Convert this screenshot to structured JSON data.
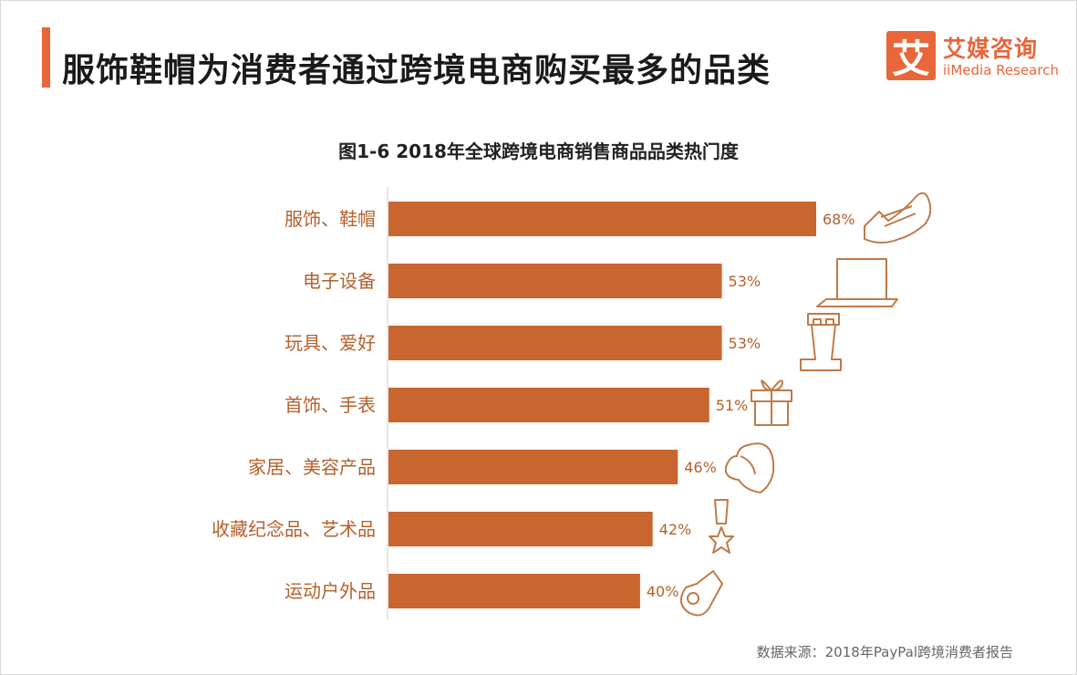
{
  "header": {
    "title": "服饰鞋帽为消费者通过跨境电商购买最多的品类"
  },
  "logo": {
    "mark": "艾",
    "name_cn": "艾媒咨询",
    "name_en": "iiMedia Research"
  },
  "colors": {
    "accent": "#e8663a",
    "bar": "#c9652e",
    "label": "#b5602c",
    "axis": "#cfcfcf"
  },
  "footer": {
    "source": "数据来源：2018年PayPal跨境消费者报告"
  },
  "chart_data": {
    "type": "bar",
    "orientation": "horizontal",
    "title": "图1-6  2018年全球跨境电商销售商品品类热门度",
    "xlabel": "",
    "ylabel": "",
    "xlim": [
      0,
      100
    ],
    "grid": false,
    "legend": "none",
    "value_suffix": "%",
    "categories": [
      "服饰、鞋帽",
      "电子设备",
      "玩具、爱好",
      "首饰、手表",
      "家居、美容产品",
      "收藏纪念品、艺术品",
      "运动户外品"
    ],
    "values": [
      68,
      53,
      53,
      51,
      46,
      42,
      40
    ],
    "icons": [
      "sneaker-icon",
      "laptop-icon",
      "chess-rook-icon",
      "gift-box-icon",
      "woman-face-icon",
      "medal-icon",
      "whistle-icon"
    ]
  }
}
